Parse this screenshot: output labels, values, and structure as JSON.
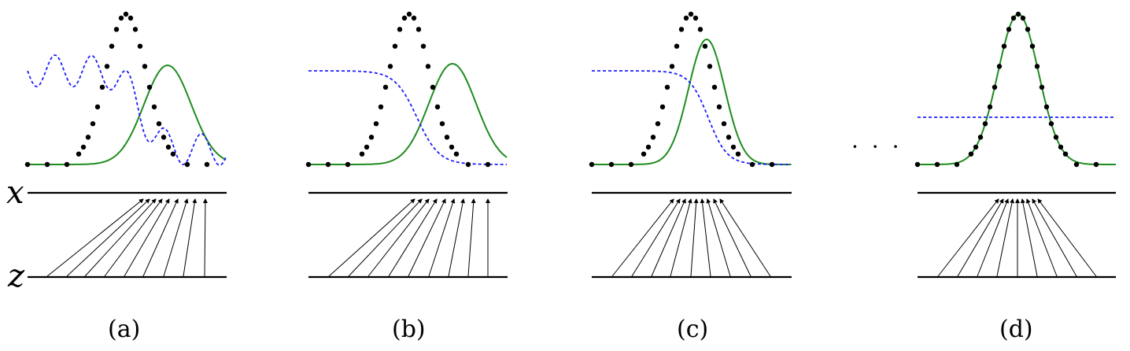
{
  "axis_labels": {
    "x": "x",
    "z": "z"
  },
  "ellipsis": "· · ·",
  "colors": {
    "data_points": "#000000",
    "generator_curve": "#1f8c1f",
    "discriminator_curve": "#1f1fff",
    "axis_lines": "#000000",
    "mapping_arrows": "#000000"
  },
  "line_styles": {
    "data_points": "dotted",
    "generator_curve": "solid",
    "discriminator_curve": "dashed"
  },
  "panels": [
    {
      "id": "a",
      "caption": "(a)",
      "discriminator_shape": "oscillating",
      "generator_offset": "right of data",
      "arrow_pattern": "converging"
    },
    {
      "id": "b",
      "caption": "(b)",
      "discriminator_shape": "smooth sigmoid",
      "generator_offset": "right of data",
      "arrow_pattern": "converging"
    },
    {
      "id": "c",
      "caption": "(c)",
      "discriminator_shape": "smooth sigmoid",
      "generator_offset": "near data",
      "arrow_pattern": "converging"
    },
    {
      "id": "d",
      "caption": "(d)",
      "discriminator_shape": "flat",
      "generator_offset": "matches data",
      "arrow_pattern": "converging"
    }
  ]
}
